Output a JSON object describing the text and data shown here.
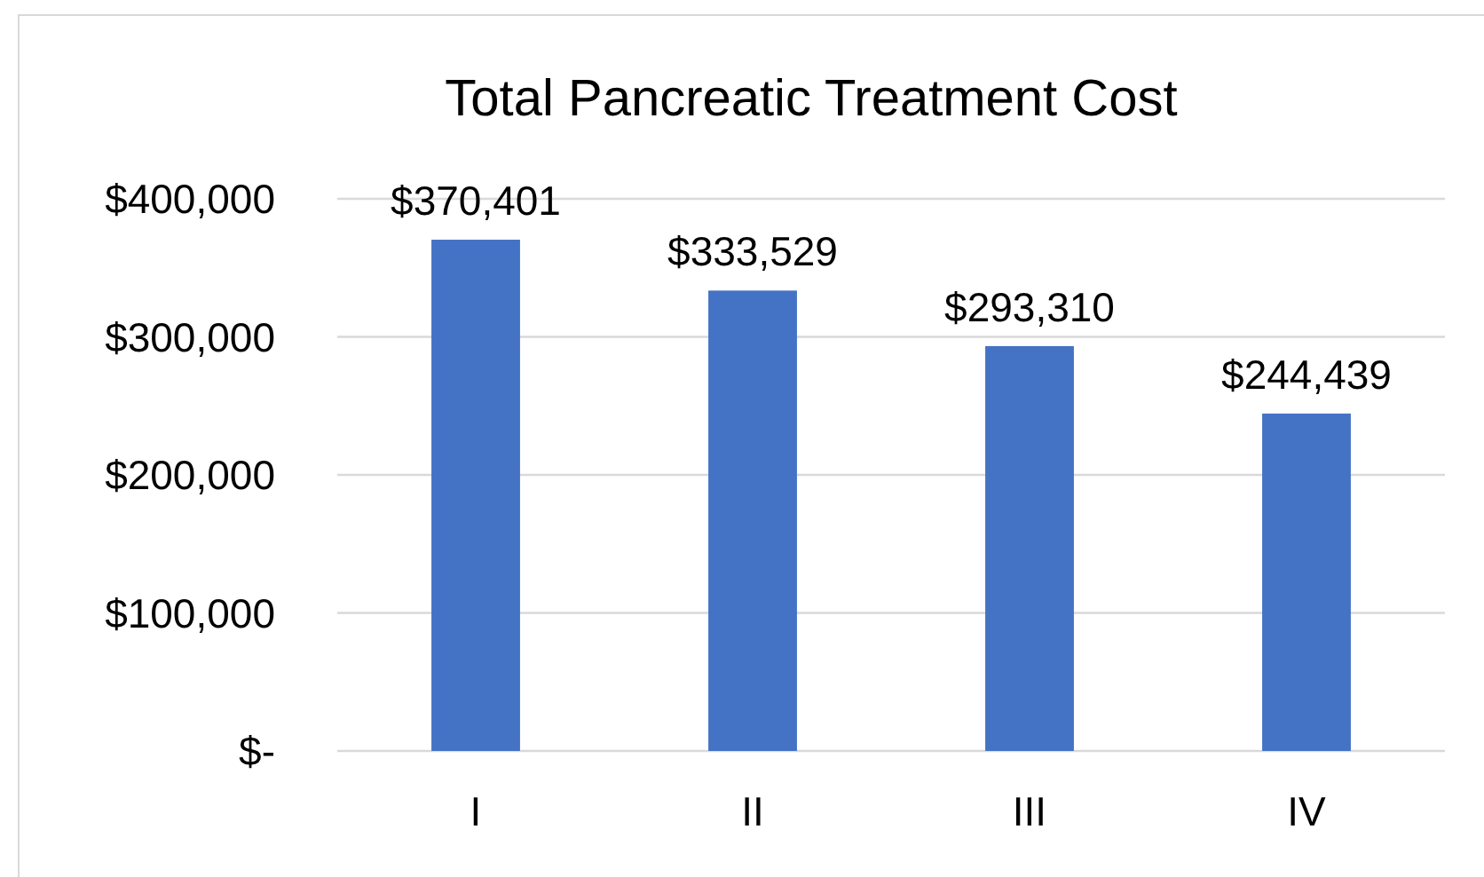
{
  "chart_data": {
    "type": "bar",
    "title": "Total Pancreatic Treatment Cost",
    "categories": [
      "I",
      "II",
      "III",
      "IV"
    ],
    "values": [
      370401,
      333529,
      293310,
      244439
    ],
    "color": "#4472c4",
    "value_labels": [
      "$370,401",
      "$333,529",
      "$293,310",
      "$244,439"
    ],
    "ylim": [
      0,
      400000
    ],
    "yticks": [
      {
        "value": 0,
        "label": "$-"
      },
      {
        "value": 100000,
        "label": "$100,000"
      },
      {
        "value": 200000,
        "label": "$200,000"
      },
      {
        "value": 300000,
        "label": "$300,000"
      },
      {
        "value": 400000,
        "label": "$400,000"
      }
    ],
    "grid": "y"
  }
}
